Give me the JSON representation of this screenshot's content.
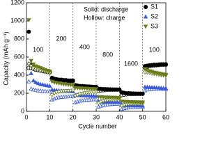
{
  "chart_data": {
    "type": "scatter",
    "xlabel": "Cycle number",
    "ylabel": "Capacity (mAh g⁻¹)",
    "xlim": [
      0,
      60
    ],
    "xticks": [
      0,
      10,
      20,
      30,
      40,
      50,
      60
    ],
    "ylim": [
      0,
      1200
    ],
    "yticks": [
      0,
      200,
      400,
      600,
      800,
      1000,
      1200
    ],
    "legend_note": [
      "Solid: discharge",
      "Hollow: charge"
    ],
    "annotations": [
      "100",
      "200",
      "400",
      "800",
      "1600",
      "100"
    ],
    "x": [
      1,
      2,
      3,
      4,
      5,
      6,
      7,
      8,
      9,
      10,
      11,
      12,
      13,
      14,
      15,
      16,
      17,
      18,
      19,
      20,
      21,
      22,
      23,
      24,
      25,
      26,
      27,
      28,
      29,
      30,
      31,
      32,
      33,
      34,
      35,
      36,
      37,
      38,
      39,
      40,
      41,
      42,
      43,
      44,
      45,
      46,
      47,
      48,
      49,
      50,
      51,
      52,
      53,
      54,
      55,
      56,
      57,
      58,
      59,
      60
    ],
    "series": [
      {
        "name": "S1",
        "color": "#000000",
        "marker": "circle",
        "values": [
          880,
          520,
          500,
          490,
          480,
          470,
          460,
          450,
          445,
          440,
          370,
          360,
          355,
          350,
          350,
          345,
          345,
          340,
          340,
          340,
          290,
          285,
          280,
          280,
          278,
          275,
          275,
          272,
          270,
          270,
          250,
          248,
          246,
          245,
          244,
          243,
          242,
          240,
          240,
          240,
          210,
          205,
          200,
          200,
          198,
          197,
          196,
          195,
          195,
          195,
          500,
          505,
          510,
          512,
          515,
          515,
          518,
          520,
          520,
          520
        ],
        "charge_values": [
          480,
          480,
          470,
          460,
          455,
          450,
          445,
          440,
          435,
          430,
          355,
          350,
          345,
          342,
          340,
          338,
          336,
          335,
          335,
          335,
          275,
          272,
          270,
          268,
          266,
          265,
          264,
          262,
          262,
          260,
          230,
          232,
          234,
          236,
          238,
          238,
          239,
          240,
          240,
          240,
          180,
          185,
          188,
          190,
          190,
          192,
          192,
          193,
          193,
          193,
          480,
          495,
          500,
          505,
          508,
          510,
          512,
          514,
          515,
          515
        ]
      },
      {
        "name": "S2",
        "color": "#3b5bdb",
        "marker": "triangle-up",
        "values": [
          530,
          420,
          340,
          320,
          310,
          300,
          295,
          290,
          285,
          280,
          240,
          235,
          232,
          230,
          228,
          226,
          225,
          224,
          222,
          220,
          180,
          178,
          176,
          175,
          174,
          173,
          172,
          171,
          170,
          170,
          110,
          108,
          106,
          105,
          104,
          104,
          103,
          102,
          102,
          100,
          70,
          68,
          66,
          65,
          64,
          64,
          63,
          62,
          62,
          60,
          270,
          268,
          266,
          265,
          264,
          262,
          260,
          258,
          256,
          255
        ],
        "charge_values": [
          330,
          250,
          240,
          235,
          230,
          228,
          225,
          222,
          220,
          218,
          130,
          140,
          150,
          155,
          158,
          160,
          162,
          164,
          165,
          166,
          100,
          108,
          115,
          120,
          124,
          126,
          128,
          130,
          131,
          132,
          50,
          60,
          68,
          72,
          75,
          78,
          80,
          82,
          83,
          84,
          25,
          32,
          38,
          42,
          45,
          47,
          48,
          49,
          50,
          50,
          230,
          240,
          242,
          244,
          245,
          246,
          246,
          247,
          248,
          248
        ]
      },
      {
        "name": "S3",
        "color": "#6b7d1c",
        "marker": "triangle-down",
        "values": [
          1010,
          560,
          520,
          500,
          490,
          480,
          470,
          460,
          450,
          440,
          330,
          320,
          315,
          310,
          305,
          300,
          298,
          295,
          292,
          290,
          260,
          258,
          256,
          255,
          254,
          252,
          250,
          250,
          248,
          248,
          160,
          158,
          156,
          155,
          155,
          154,
          153,
          152,
          152,
          150,
          110,
          108,
          106,
          105,
          104,
          103,
          102,
          102,
          101,
          100,
          470,
          455,
          445,
          440,
          430,
          425,
          420,
          415,
          410,
          405
        ],
        "charge_values": [
          520,
          500,
          480,
          470,
          460,
          450,
          445,
          440,
          430,
          420,
          180,
          200,
          210,
          215,
          220,
          222,
          225,
          226,
          228,
          230,
          170,
          180,
          190,
          195,
          200,
          205,
          208,
          210,
          212,
          215,
          90,
          105,
          115,
          120,
          125,
          128,
          130,
          132,
          134,
          135,
          60,
          70,
          75,
          80,
          82,
          84,
          85,
          86,
          87,
          88,
          430,
          430,
          425,
          420,
          415,
          410,
          405,
          400,
          398,
          395
        ]
      }
    ]
  }
}
